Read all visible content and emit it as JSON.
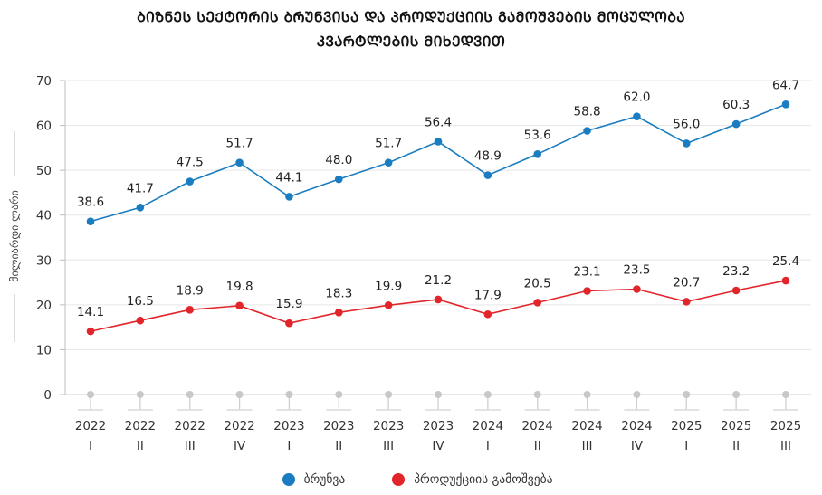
{
  "title_line1": "ᲑᲘᲖᲜᲔᲡ ᲡᲔᲥᲢᲝᲠᲘᲡ ᲑᲠᲣᲜᲕᲘᲡᲐ ᲓᲐ ᲞᲠᲝᲓᲣᲥᲪᲘᲘᲡ ᲒᲐᲛᲝᲨᲕᲔᲑᲘᲡ ᲛᲝᲪᲣᲚᲝᲑᲐ",
  "title_line2": "ᲙᲕᲐᲠᲢᲚᲔᲑᲘᲡ ᲛᲘᲮᲔᲓᲕᲘᲗ",
  "chart_data": {
    "type": "line",
    "title": "ᲑᲘᲖᲜᲔᲡ ᲡᲔᲥᲢᲝᲠᲘᲡ ᲑᲠᲣᲜᲕᲘᲡᲐ ᲓᲐ ᲞᲠᲝᲓᲣᲥᲪᲘᲘᲡ ᲒᲐᲛᲝᲨᲕᲔᲑᲘᲡ ᲛᲝᲪᲣᲚᲝᲑᲐ ᲙᲕᲐᲠᲢᲚᲔᲑᲘᲡ ᲛᲘᲮᲔᲓᲕᲘᲗ",
    "xlabel": "",
    "ylabel": "მილიარდი ლარი",
    "ylim": [
      0,
      70
    ],
    "yticks": [
      0,
      10,
      20,
      30,
      40,
      50,
      60,
      70
    ],
    "grid": true,
    "legend_position": "bottom-center",
    "categories": [
      {
        "year": "2022",
        "quarter": "I"
      },
      {
        "year": "2022",
        "quarter": "II"
      },
      {
        "year": "2022",
        "quarter": "III"
      },
      {
        "year": "2022",
        "quarter": "IV"
      },
      {
        "year": "2023",
        "quarter": "I"
      },
      {
        "year": "2023",
        "quarter": "II"
      },
      {
        "year": "2023",
        "quarter": "III"
      },
      {
        "year": "2023",
        "quarter": "IV"
      },
      {
        "year": "2024",
        "quarter": "I"
      },
      {
        "year": "2024",
        "quarter": "II"
      },
      {
        "year": "2024",
        "quarter": "III"
      },
      {
        "year": "2024",
        "quarter": "IV"
      },
      {
        "year": "2025",
        "quarter": "I"
      },
      {
        "year": "2025",
        "quarter": "II"
      },
      {
        "year": "2025",
        "quarter": "III"
      }
    ],
    "series": [
      {
        "name": "ბრუნვა",
        "color": "#1a7cc1",
        "values": [
          38.6,
          41.7,
          47.5,
          51.7,
          44.1,
          48.0,
          51.7,
          56.4,
          48.9,
          53.6,
          58.8,
          62.0,
          56.0,
          60.3,
          64.7
        ],
        "labels": [
          "38.6",
          "41.7",
          "47.5",
          "51.7",
          "44.1",
          "48.0",
          "51.7",
          "56.4",
          "48.9",
          "53.6",
          "58.8",
          "62.0",
          "56.0",
          "60.3",
          "64.7"
        ]
      },
      {
        "name": "პროდუქციის გამოშვება",
        "color": "#e2252b",
        "values": [
          14.1,
          16.5,
          18.9,
          19.8,
          15.9,
          18.3,
          19.9,
          21.2,
          17.9,
          20.5,
          23.1,
          23.5,
          20.7,
          23.2,
          25.4
        ],
        "labels": [
          "14.1",
          "16.5",
          "18.9",
          "19.8",
          "15.9",
          "18.3",
          "19.9",
          "21.2",
          "17.9",
          "20.5",
          "23.1",
          "23.5",
          "20.7",
          "23.2",
          "25.4"
        ]
      }
    ],
    "baseline_marker_color": "#c8c8c8"
  }
}
